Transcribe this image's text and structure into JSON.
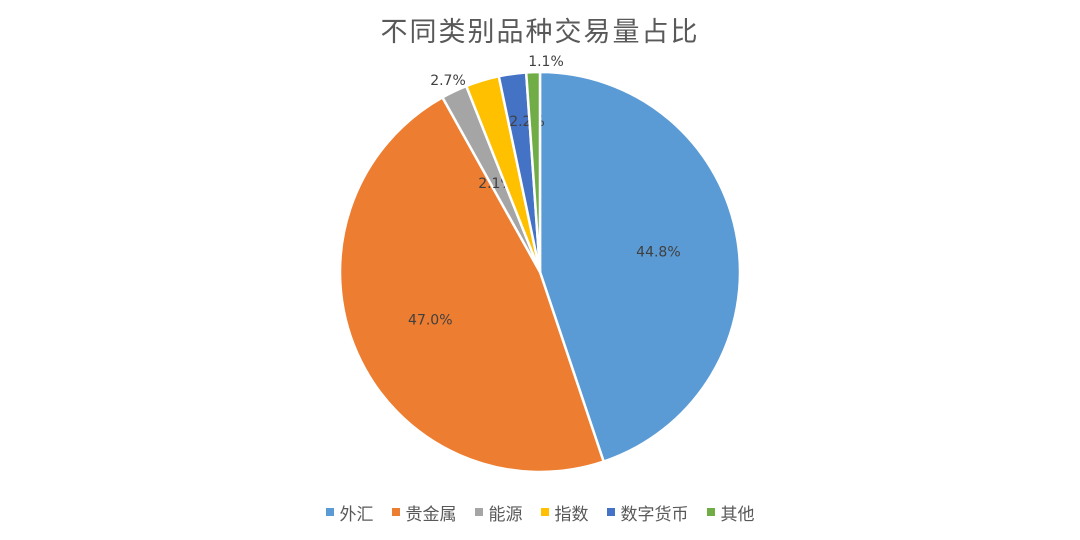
{
  "chart_data": {
    "type": "pie",
    "title": "不同类别品种交易量占比",
    "legend_position": "bottom",
    "slices": [
      {
        "name": "外汇",
        "value": 44.8,
        "label": "44.8%",
        "color": "#5B9BD5"
      },
      {
        "name": "贵金属",
        "value": 47.0,
        "label": "47.0%",
        "color": "#ED7D31"
      },
      {
        "name": "能源",
        "value": 2.1,
        "label": "2.1%",
        "color": "#A5A5A5"
      },
      {
        "name": "指数",
        "value": 2.7,
        "label": "2.7%",
        "color": "#FFC000"
      },
      {
        "name": "数字货币",
        "value": 2.2,
        "label": "2.2%",
        "color": "#4472C4"
      },
      {
        "name": "其他",
        "value": 1.1,
        "label": "1.1%",
        "color": "#70AD47"
      }
    ]
  }
}
